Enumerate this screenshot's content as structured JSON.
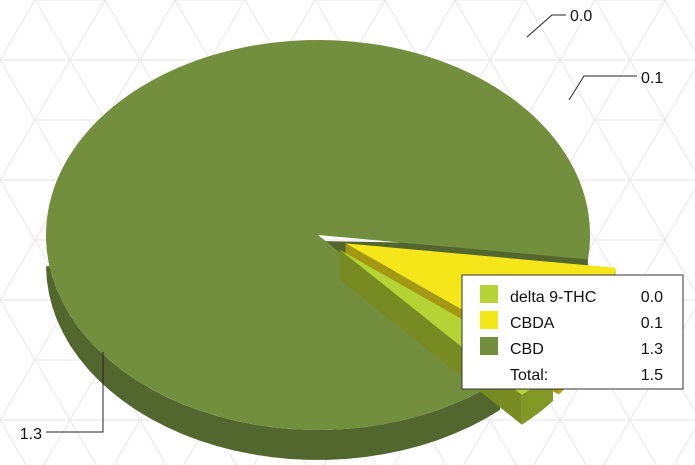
{
  "chart_data": {
    "type": "pie",
    "style": "3d-exploded",
    "slices": [
      {
        "name": "delta 9-THC",
        "value": 0.04,
        "label": "0.0",
        "color": "#b5d334"
      },
      {
        "name": "CBDA",
        "value": 0.13,
        "label": "0.1",
        "color": "#f5e619"
      },
      {
        "name": "CBD",
        "value": 1.33,
        "label": "1.3",
        "color": "#728f3e"
      }
    ],
    "legend": {
      "placement": "right",
      "entries": [
        {
          "name": "delta 9-THC",
          "value": "0.0"
        },
        {
          "name": "CBDA",
          "value": "0.1"
        },
        {
          "name": "CBD",
          "value": "1.3"
        }
      ],
      "total_label": "Total:",
      "total_value": "1.5"
    }
  }
}
